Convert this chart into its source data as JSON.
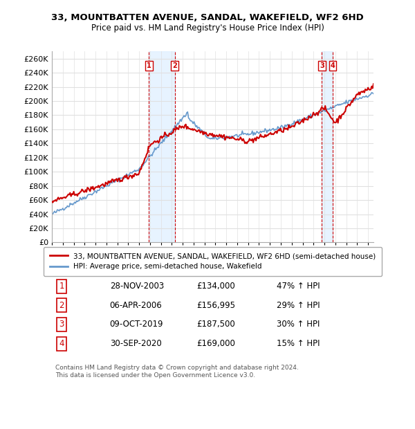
{
  "title": "33, MOUNTBATTEN AVENUE, SANDAL, WAKEFIELD, WF2 6HD",
  "subtitle": "Price paid vs. HM Land Registry's House Price Index (HPI)",
  "ylabel_ticks": [
    0,
    20000,
    40000,
    60000,
    80000,
    100000,
    120000,
    140000,
    160000,
    180000,
    200000,
    220000,
    240000,
    260000
  ],
  "ylabel_labels": [
    "£0",
    "£20K",
    "£40K",
    "£60K",
    "£80K",
    "£100K",
    "£120K",
    "£140K",
    "£160K",
    "£180K",
    "£200K",
    "£220K",
    "£240K",
    "£260K"
  ],
  "xlim_start": 1995.0,
  "xlim_end": 2024.5,
  "ylim_min": 0,
  "ylim_max": 270000,
  "background_color": "#ffffff",
  "plot_bg_color": "#ffffff",
  "grid_color": "#e0e0e0",
  "transactions": [
    {
      "num": 1,
      "date": "28-NOV-2003",
      "price": 134000,
      "pct": "47%",
      "x_year": 2003.9
    },
    {
      "num": 2,
      "date": "06-APR-2006",
      "price": 156995,
      "pct": "29%",
      "x_year": 2006.27
    },
    {
      "num": 3,
      "date": "09-OCT-2019",
      "price": 187500,
      "pct": "30%",
      "x_year": 2019.77
    },
    {
      "num": 4,
      "date": "30-SEP-2020",
      "price": 169000,
      "pct": "15%",
      "x_year": 2020.75
    }
  ],
  "legend_property": "33, MOUNTBATTEN AVENUE, SANDAL, WAKEFIELD, WF2 6HD (semi-detached house)",
  "legend_hpi": "HPI: Average price, semi-detached house, Wakefield",
  "footnote": "Contains HM Land Registry data © Crown copyright and database right 2024.\nThis data is licensed under the Open Government Licence v3.0.",
  "table_rows": [
    [
      "1",
      "28-NOV-2003",
      "£134,000",
      "47% ↑ HPI"
    ],
    [
      "2",
      "06-APR-2006",
      "£156,995",
      "29% ↑ HPI"
    ],
    [
      "3",
      "09-OCT-2019",
      "£187,500",
      "30% ↑ HPI"
    ],
    [
      "4",
      "30-SEP-2020",
      "£169,000",
      "15% ↑ HPI"
    ]
  ],
  "red_line_color": "#cc0000",
  "blue_line_color": "#6699cc",
  "shade_color": "#ddeeff",
  "vline_color": "#cc0000",
  "marker_box_color": "#cc0000"
}
